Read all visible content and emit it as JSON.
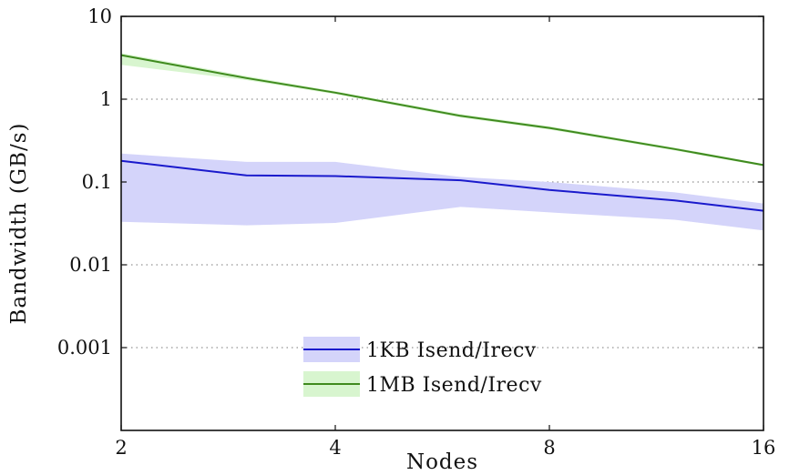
{
  "chart_data": {
    "type": "line",
    "xlabel": "Nodes",
    "ylabel": "Bandwidth (GB/s)",
    "xscale": "log2",
    "yscale": "log10",
    "xlim": [
      2,
      16
    ],
    "ylim": [
      0.0001,
      10
    ],
    "xticks": [
      2,
      4,
      8,
      16
    ],
    "xtick_labels": [
      "2",
      "4",
      "8",
      "16"
    ],
    "yticks": [
      0.001,
      0.01,
      0.1,
      1,
      10
    ],
    "ytick_labels": [
      "0.001",
      "0.01",
      "0.1",
      "1",
      "10"
    ],
    "grid": "horizontal dotted",
    "legend_position": "bottom-center",
    "series": [
      {
        "name": "1KB Isend/Irecv",
        "color": "#1a1acc",
        "band_color": "#d4d4fa",
        "x": [
          2,
          3,
          4,
          6,
          8,
          12,
          16
        ],
        "values": [
          0.18,
          0.12,
          0.118,
          0.105,
          0.08,
          0.06,
          0.045
        ],
        "band_low": [
          0.033,
          0.03,
          0.032,
          0.05,
          0.043,
          0.035,
          0.026
        ],
        "band_high": [
          0.22,
          0.175,
          0.175,
          0.115,
          0.1,
          0.075,
          0.055
        ]
      },
      {
        "name": "1MB Isend/Irecv",
        "color": "#3f8a1e",
        "band_color": "#d8f5cf",
        "x": [
          2,
          3,
          4,
          6,
          8,
          12,
          16
        ],
        "values": [
          3.4,
          1.8,
          1.2,
          0.63,
          0.45,
          0.25,
          0.16
        ],
        "band_low": [
          2.6,
          1.7,
          1.15,
          0.6,
          0.43,
          0.24,
          0.155
        ],
        "band_high": [
          3.6,
          1.9,
          1.25,
          0.66,
          0.47,
          0.26,
          0.165
        ]
      }
    ]
  }
}
